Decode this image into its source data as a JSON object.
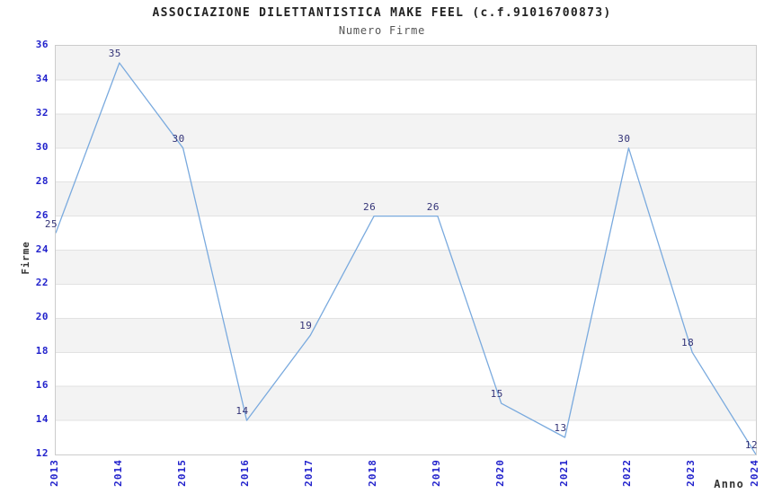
{
  "chart_data": {
    "type": "line",
    "title": "ASSOCIAZIONE DILETTANTISTICA MAKE FEEL (c.f.91016700873)",
    "subtitle": "Numero Firme",
    "xlabel": "Anno",
    "ylabel": "Firme",
    "categories": [
      "2013",
      "2014",
      "2015",
      "2016",
      "2017",
      "2018",
      "2019",
      "2020",
      "2021",
      "2022",
      "2023",
      "2024"
    ],
    "values": [
      25,
      35,
      30,
      14,
      19,
      26,
      26,
      15,
      13,
      30,
      18,
      12
    ],
    "ylim": [
      12,
      36
    ],
    "ytick_step": 2,
    "yticks": [
      12,
      14,
      16,
      18,
      20,
      22,
      24,
      26,
      28,
      30,
      32,
      34,
      36
    ],
    "grid": "horizontal gridlines with alternating shaded bands",
    "legend": "none",
    "colors": {
      "line": "#7aaade",
      "tick_labels": "#2222cc",
      "point_labels": "#333377",
      "band": "#f3f3f3",
      "gridline": "#e2e2e2",
      "plot_border": "#cccccc",
      "title": "#222222",
      "subtitle": "#555555",
      "axis_titles": "#333333",
      "background": "#ffffff"
    }
  }
}
